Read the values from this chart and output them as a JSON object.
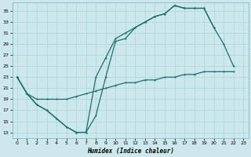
{
  "xlabel": "Humidex (Indice chaleur)",
  "bg_color": "#cde8ec",
  "grid_color": "#b0d8dc",
  "line_color": "#1a6e6a",
  "xlim": [
    -0.5,
    23.5
  ],
  "ylim": [
    12,
    36.5
  ],
  "yticks": [
    13,
    15,
    17,
    19,
    21,
    23,
    25,
    27,
    29,
    31,
    33,
    35
  ],
  "xticks": [
    0,
    1,
    2,
    3,
    4,
    5,
    6,
    7,
    8,
    9,
    10,
    11,
    12,
    13,
    14,
    15,
    16,
    17,
    18,
    19,
    20,
    21,
    22,
    23
  ],
  "series1_y": [
    23,
    20,
    18,
    17,
    15.5,
    14,
    13,
    13,
    16,
    23,
    29.5,
    30,
    32,
    33,
    34,
    34.5,
    36,
    35.5,
    35.5,
    35.5,
    32,
    null,
    null,
    null
  ],
  "series2_y": [
    23,
    20,
    18,
    17,
    15.5,
    14,
    13,
    13,
    23,
    26.5,
    30,
    31,
    32,
    33,
    34,
    34.5,
    36,
    35.5,
    35.5,
    35.5,
    32,
    29,
    25,
    null
  ],
  "series3_y": [
    23,
    20,
    19,
    19,
    19,
    19,
    19.5,
    20,
    20.5,
    21,
    21.5,
    22,
    22,
    22.5,
    22.5,
    23,
    23,
    23.5,
    23.5,
    24,
    24,
    24,
    24,
    null
  ]
}
